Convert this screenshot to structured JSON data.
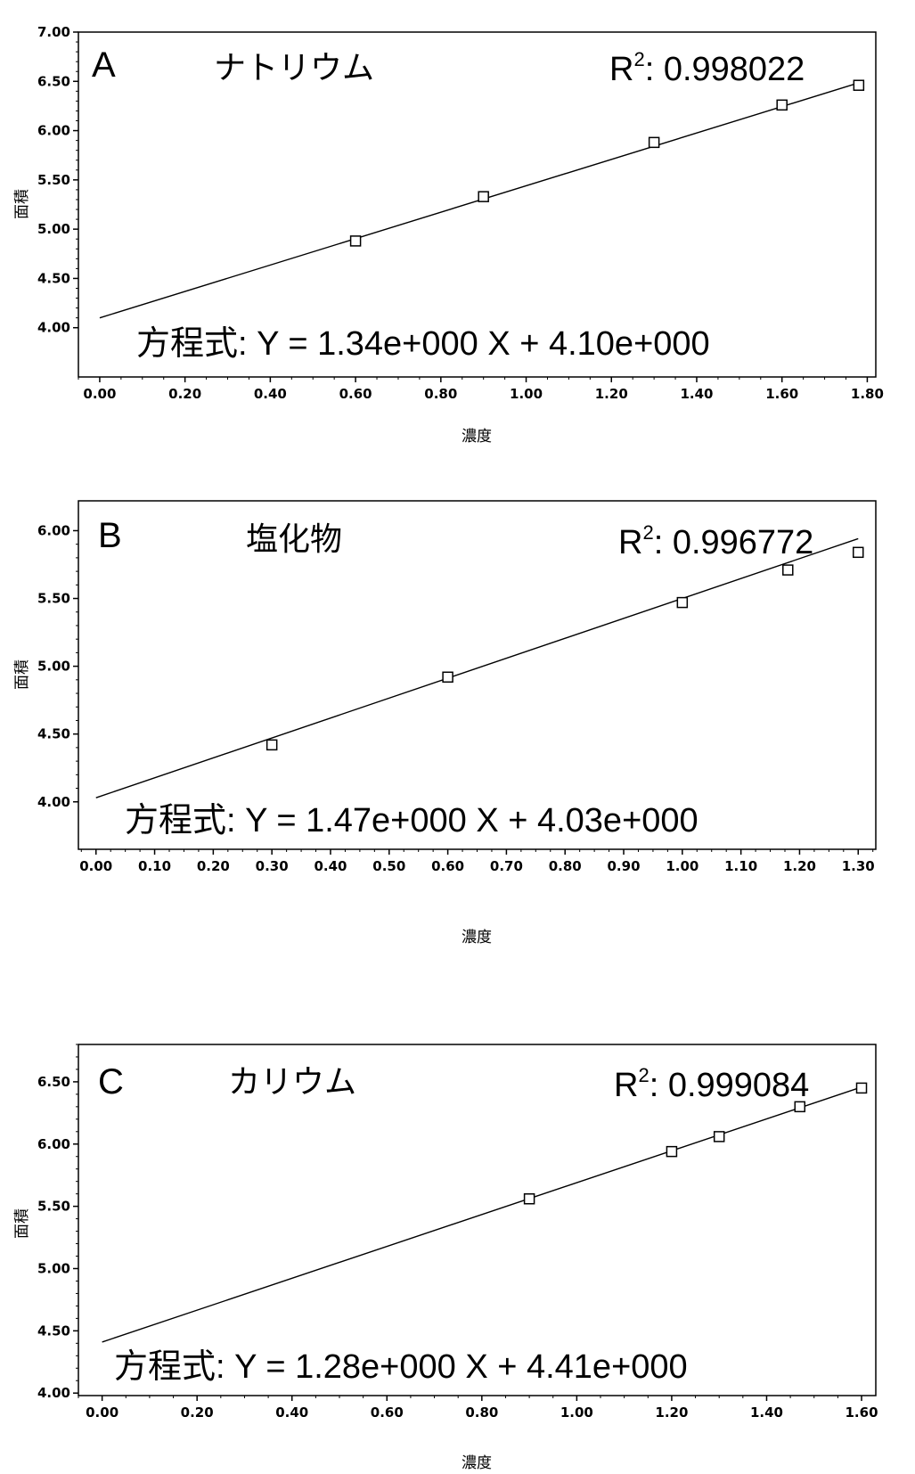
{
  "chart_data": [
    {
      "type": "scatter",
      "panel": "A",
      "title": "ナトリウム",
      "xlabel": "濃度",
      "ylabel": "面積",
      "xlim": [
        -0.05,
        1.82
      ],
      "ylim": [
        3.5,
        7.0
      ],
      "x_ticks": [
        "0.00",
        "0.20",
        "0.40",
        "0.60",
        "0.80",
        "1.00",
        "1.20",
        "1.40",
        "1.60",
        "1.80"
      ],
      "y_ticks": [
        "4.00",
        "4.50",
        "5.00",
        "5.50",
        "6.00",
        "6.50",
        "7.00"
      ],
      "points": [
        {
          "x": 0.6,
          "y": 4.88
        },
        {
          "x": 0.9,
          "y": 5.33
        },
        {
          "x": 1.3,
          "y": 5.88
        },
        {
          "x": 1.6,
          "y": 6.26
        },
        {
          "x": 1.78,
          "y": 6.46
        }
      ],
      "fit": {
        "slope": 1.34,
        "intercept": 4.1
      },
      "r2_label": "R",
      "r2_sup": "2",
      "r2_value": ": 0.998022",
      "equation": "方程式: Y = 1.34e+000 X + 4.10e+000"
    },
    {
      "type": "scatter",
      "panel": "B",
      "title": "塩化物",
      "xlabel": "濃度",
      "ylabel": "面積",
      "xlim": [
        -0.03,
        1.33
      ],
      "ylim": [
        3.65,
        6.22
      ],
      "x_ticks": [
        "0.00",
        "0.10",
        "0.20",
        "0.30",
        "0.40",
        "0.50",
        "0.60",
        "0.70",
        "0.80",
        "0.90",
        "1.00",
        "1.10",
        "1.20",
        "1.30"
      ],
      "y_ticks": [
        "4.00",
        "4.50",
        "5.00",
        "5.50",
        "6.00"
      ],
      "points": [
        {
          "x": 0.3,
          "y": 4.42
        },
        {
          "x": 0.6,
          "y": 4.92
        },
        {
          "x": 1.0,
          "y": 5.47
        },
        {
          "x": 1.18,
          "y": 5.71
        },
        {
          "x": 1.3,
          "y": 5.84
        }
      ],
      "fit": {
        "slope": 1.47,
        "intercept": 4.03
      },
      "r2_label": "R",
      "r2_sup": "2",
      "r2_value": ": 0.996772",
      "equation": "方程式: Y = 1.47e+000 X + 4.03e+000"
    },
    {
      "type": "scatter",
      "panel": "C",
      "title": "カリウム",
      "xlabel": "濃度",
      "ylabel": "面積",
      "xlim": [
        -0.05,
        1.63
      ],
      "ylim": [
        3.98,
        6.8
      ],
      "x_ticks": [
        "0.00",
        "0.20",
        "0.40",
        "0.60",
        "0.80",
        "1.00",
        "1.20",
        "1.40",
        "1.60"
      ],
      "y_ticks": [
        "4.00",
        "4.50",
        "5.00",
        "5.50",
        "6.00",
        "6.50"
      ],
      "points": [
        {
          "x": 0.9,
          "y": 5.56
        },
        {
          "x": 1.2,
          "y": 5.94
        },
        {
          "x": 1.3,
          "y": 6.06
        },
        {
          "x": 1.47,
          "y": 6.3
        },
        {
          "x": 1.6,
          "y": 6.45
        }
      ],
      "fit": {
        "slope": 1.28,
        "intercept": 4.41
      },
      "r2_label": "R",
      "r2_sup": "2",
      "r2_value": ": 0.999084",
      "equation": "方程式: Y = 1.28e+000 X + 4.41e+000"
    }
  ]
}
